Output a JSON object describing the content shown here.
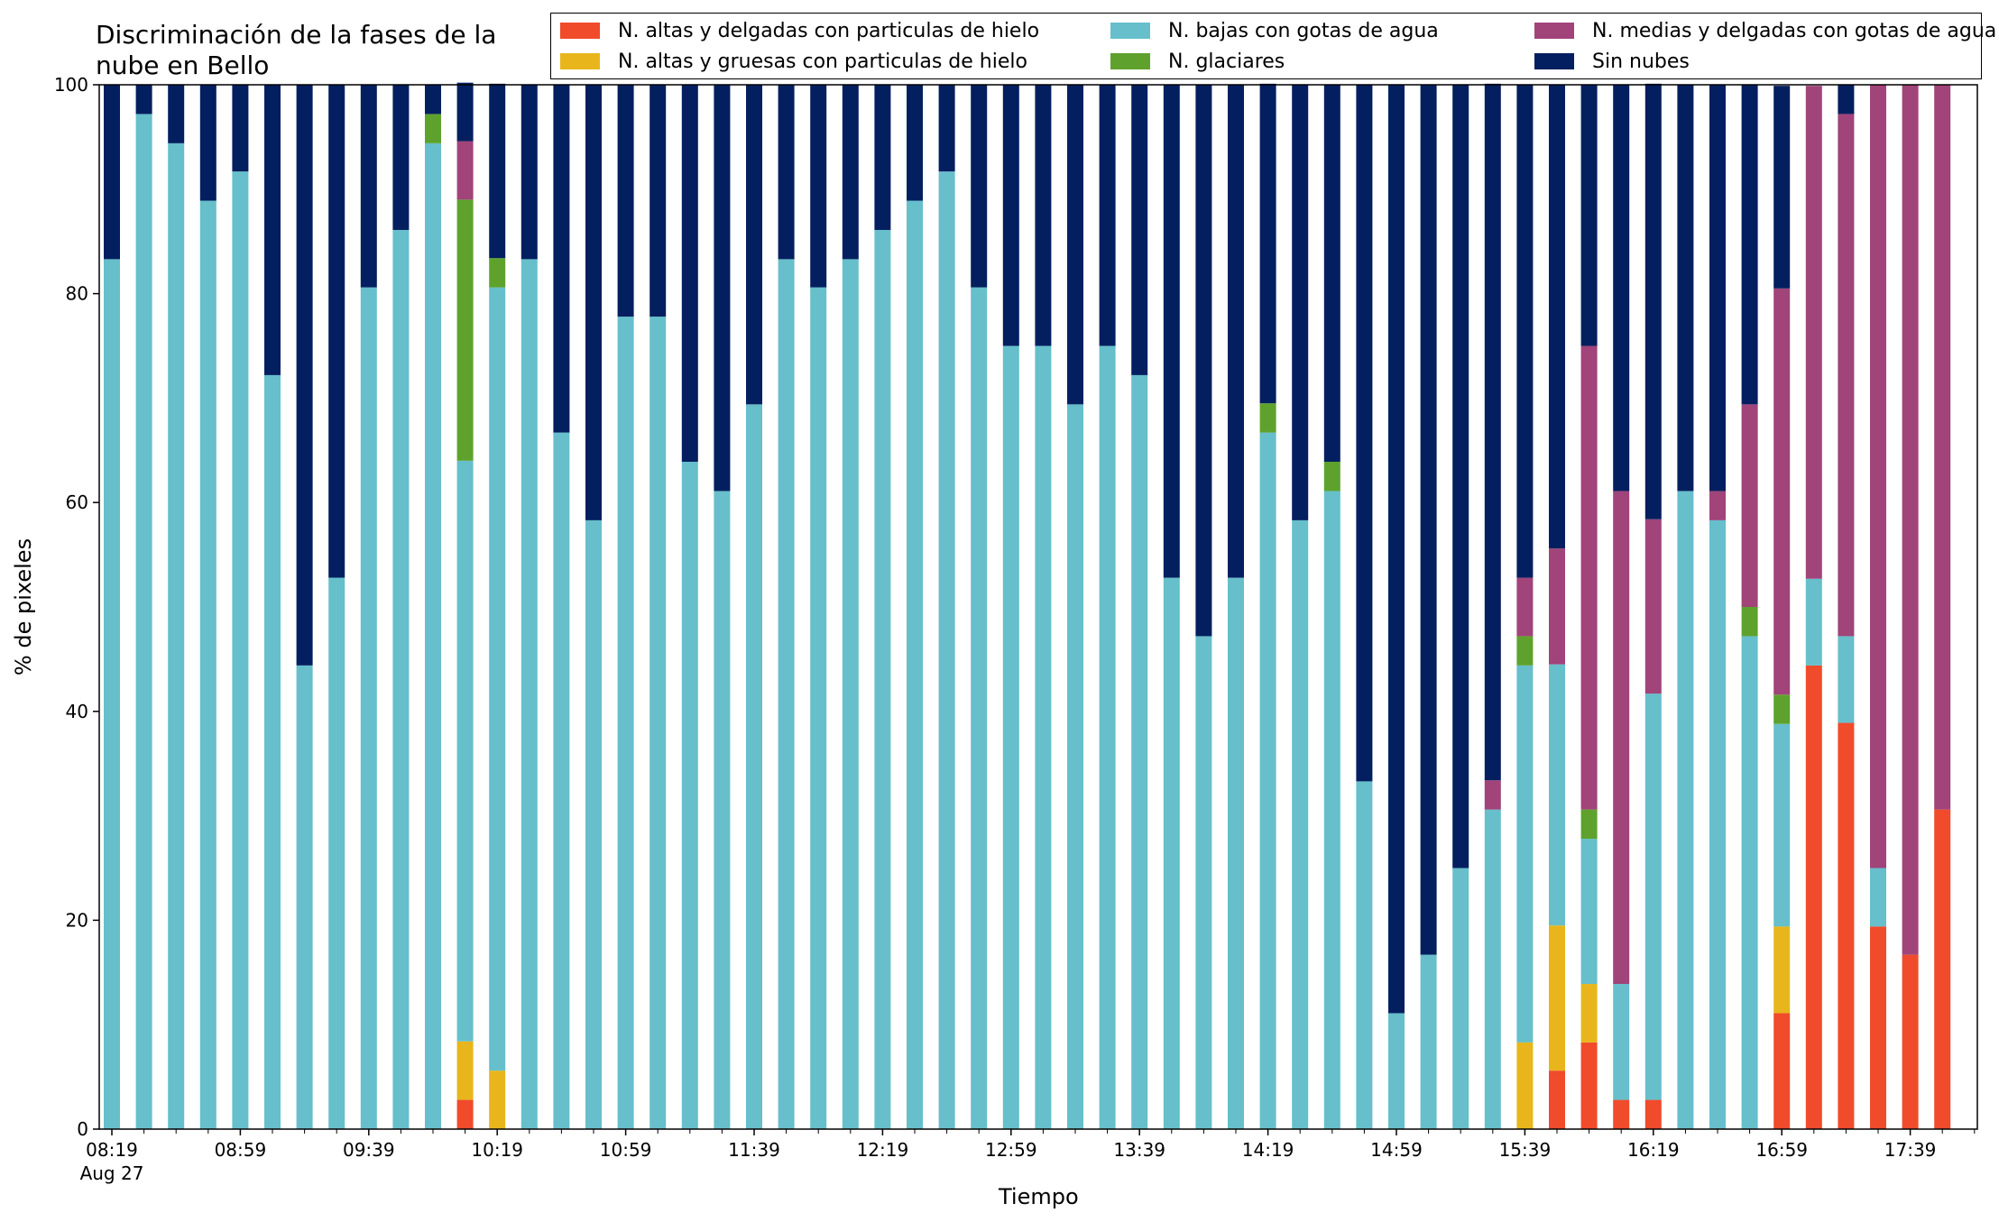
{
  "chart_data": {
    "type": "bar",
    "stacked": true,
    "title": "Discriminación de la fases de la\nnube en Bello",
    "xlabel": "Tiempo",
    "ylabel": "% de pixeles",
    "ylim": [
      0,
      100
    ],
    "yticks": [
      0,
      20,
      40,
      60,
      80,
      100
    ],
    "xtick_labels": [
      "08:19",
      "08:59",
      "09:39",
      "10:19",
      "10:59",
      "11:39",
      "12:19",
      "12:59",
      "13:39",
      "14:19",
      "14:59",
      "15:39",
      "16:19",
      "16:59",
      "17:39"
    ],
    "xtick_sublabel": "Aug 27",
    "grid": false,
    "legend_position": "top-right",
    "legend_columns": 3,
    "categories": [
      "08:19",
      "08:29",
      "08:39",
      "08:49",
      "08:59",
      "09:09",
      "09:19",
      "09:29",
      "09:39",
      "09:49",
      "09:59",
      "10:09",
      "10:19",
      "10:29",
      "10:39",
      "10:49",
      "10:59",
      "11:09",
      "11:19",
      "11:29",
      "11:39",
      "11:49",
      "11:59",
      "12:09",
      "12:19",
      "12:29",
      "12:39",
      "12:49",
      "12:59",
      "13:09",
      "13:19",
      "13:29",
      "13:39",
      "13:49",
      "13:59",
      "14:09",
      "14:19",
      "14:29",
      "14:39",
      "14:49",
      "14:59",
      "15:09",
      "15:19",
      "15:29",
      "15:39",
      "15:49",
      "15:59",
      "16:09",
      "16:19",
      "16:29",
      "16:39",
      "16:49",
      "16:59",
      "17:09",
      "17:19",
      "17:29",
      "17:39",
      "17:49"
    ],
    "series": [
      {
        "name": "N. altas y delgadas con particulas de hielo",
        "color": "#f04b2b",
        "values": [
          0,
          0,
          0,
          0,
          0,
          0,
          0,
          0,
          0,
          0,
          0,
          2.8,
          0,
          0,
          0,
          0,
          0,
          0,
          0,
          0,
          0,
          0,
          0,
          0,
          0,
          0,
          0,
          0,
          0,
          0,
          0,
          0,
          0,
          0,
          0,
          0,
          0,
          0,
          0,
          0,
          0,
          0,
          0,
          0,
          0,
          5.6,
          8.3,
          2.8,
          2.8,
          0,
          0,
          0,
          11.1,
          44.4,
          38.9,
          19.4,
          16.7,
          30.6
        ]
      },
      {
        "name": "N. altas y gruesas con particulas de hielo",
        "color": "#e8b61c",
        "values": [
          0,
          0,
          0,
          0,
          0,
          0,
          0,
          0,
          0,
          0,
          0,
          5.6,
          5.6,
          0,
          0,
          0,
          0,
          0,
          0,
          0,
          0,
          0,
          0,
          0,
          0,
          0,
          0,
          0,
          0,
          0,
          0,
          0,
          0,
          0,
          0,
          0,
          0,
          0,
          0,
          0,
          0,
          0,
          0,
          0,
          8.3,
          13.9,
          5.6,
          0,
          0,
          0,
          0,
          0,
          8.3,
          0,
          0,
          0,
          0,
          0
        ]
      },
      {
        "name": "N. bajas con gotas de agua",
        "color": "#66bfcb",
        "values": [
          83.3,
          97.2,
          94.4,
          88.9,
          91.7,
          72.2,
          44.4,
          52.8,
          80.6,
          86.1,
          94.4,
          55.6,
          75.0,
          83.3,
          66.7,
          58.3,
          77.8,
          77.8,
          63.9,
          61.1,
          69.4,
          83.3,
          80.6,
          83.3,
          86.1,
          88.9,
          91.7,
          80.6,
          75.0,
          75.0,
          69.4,
          75.0,
          72.2,
          52.8,
          47.2,
          52.8,
          66.7,
          58.3,
          61.1,
          33.3,
          11.1,
          16.7,
          25.0,
          30.6,
          36.1,
          25.0,
          13.9,
          11.1,
          38.9,
          61.1,
          58.3,
          47.2,
          19.4,
          8.3,
          8.3,
          5.6,
          0,
          0
        ]
      },
      {
        "name": "N. glaciares",
        "color": "#5ea22d",
        "values": [
          0,
          0,
          0,
          0,
          0,
          0,
          0,
          0,
          0,
          0,
          2.8,
          25.0,
          2.8,
          0,
          0,
          0,
          0,
          0,
          0,
          0,
          0,
          0,
          0,
          0,
          0,
          0,
          0,
          0,
          0,
          0,
          0,
          0,
          0,
          0,
          0,
          0,
          2.8,
          0,
          2.8,
          0,
          0,
          0,
          0,
          0,
          2.8,
          0,
          2.8,
          0,
          0,
          0,
          0,
          2.8,
          2.8,
          0,
          0,
          0,
          0,
          0
        ]
      },
      {
        "name": "N. medias y delgadas con gotas de agua",
        "color": "#a0447a",
        "values": [
          0,
          0,
          0,
          0,
          0,
          0,
          0,
          0,
          0,
          0,
          0,
          5.6,
          0,
          0,
          0,
          0,
          0,
          0,
          0,
          0,
          0,
          0,
          0,
          0,
          0,
          0,
          0,
          0,
          0,
          0,
          0,
          0,
          0,
          0,
          0,
          0,
          0,
          0,
          0,
          0,
          0,
          0,
          0,
          2.8,
          5.6,
          11.1,
          44.4,
          47.2,
          16.7,
          0,
          2.8,
          19.4,
          38.9,
          47.2,
          50.0,
          75.0,
          83.3,
          69.4
        ]
      },
      {
        "name": "Sin nubes",
        "color": "#041f5f",
        "values": [
          16.7,
          2.8,
          5.6,
          11.1,
          8.3,
          27.8,
          55.6,
          47.2,
          19.4,
          13.9,
          2.8,
          5.6,
          16.7,
          16.7,
          33.3,
          41.7,
          22.2,
          22.2,
          36.1,
          38.9,
          30.6,
          16.7,
          19.4,
          16.7,
          13.9,
          11.1,
          8.3,
          19.4,
          25.0,
          25.0,
          30.6,
          25.0,
          27.8,
          47.2,
          52.8,
          47.2,
          30.6,
          41.7,
          36.1,
          66.7,
          88.9,
          83.3,
          75.0,
          66.7,
          47.2,
          44.4,
          25.0,
          38.9,
          41.7,
          38.9,
          38.9,
          30.6,
          19.4,
          0,
          2.8,
          0,
          0,
          0
        ]
      }
    ]
  }
}
